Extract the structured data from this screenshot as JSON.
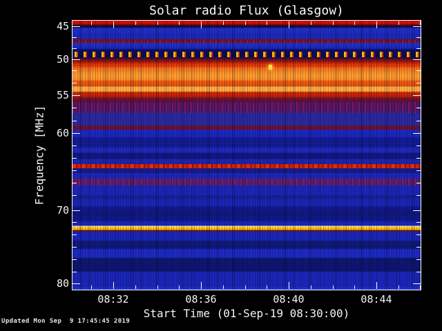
{
  "header": {
    "title": "Solar radio Flux (Glasgow)"
  },
  "footer": {
    "updated": "Updated Mon Sep  9 17:45:45 2019"
  },
  "chart_data": {
    "type": "heatmap",
    "subtype": "radio-spectrogram",
    "title": "Solar radio Flux (Glasgow)",
    "xlabel": "Start Time (01-Sep-19 08:30:00)",
    "ylabel": "Frequency [MHz]",
    "x_tick_labels": [
      "08:32",
      "08:36",
      "08:40",
      "08:44"
    ],
    "x_minor_tick_interval": "1 minute",
    "x_range": [
      "08:30:10",
      "08:46:10"
    ],
    "y_tick_labels": [
      "45",
      "50",
      "55",
      "60",
      "70",
      "80"
    ],
    "y_range_mhz": [
      45,
      80
    ],
    "y_axis_orientation": "inverted (45 MHz at top, 80 MHz at bottom)",
    "grid": "off",
    "legend": "none",
    "colormap": "blue (quiet) -> red -> orange -> yellow/white (intense)",
    "background_level": "quiet blue continuum with vertical noise striations",
    "features": [
      {
        "freq_mhz": 44.8,
        "extent": "full time range",
        "kind": "broadband interference band",
        "intensity": "high",
        "color": "red"
      },
      {
        "freq_mhz": 47.3,
        "extent": "full time range",
        "kind": "weak mottled band",
        "intensity": "low",
        "color": "purple"
      },
      {
        "freq_mhz": 49.0,
        "extent": "full time range",
        "kind": "periodic dotted carrier (regular pulses)",
        "intensity": "high",
        "color": "yellow/orange dashes on dark background"
      },
      {
        "freq_mhz_range": [
          50.2,
          55.3
        ],
        "extent": "full time range",
        "kind": "strong broadband emission/RFI band",
        "intensity": "very high",
        "color": "red to orange-yellow, brightest near 51.5 and 54.3 MHz"
      },
      {
        "freq_mhz": 51.2,
        "time_approx": "08:39",
        "kind": "isolated point burst",
        "intensity": "saturated",
        "color": "bright yellow"
      },
      {
        "freq_mhz": 59.4,
        "extent": "full time range",
        "kind": "narrow band",
        "intensity": "medium",
        "color": "dark red"
      },
      {
        "freq_mhz": 64.3,
        "extent": "full time range",
        "kind": "narrow intermittent band",
        "intensity": "high",
        "color": "red speckles"
      },
      {
        "freq_mhz": 66.3,
        "extent": "full time range",
        "kind": "weak mottled band",
        "intensity": "low",
        "color": "purple"
      },
      {
        "freq_mhz": 72.4,
        "extent": "full time range",
        "kind": "continuous narrow carrier",
        "intensity": "saturated",
        "color": "white-yellow line with dark red lower edge"
      }
    ]
  },
  "colors": {
    "page_background": "#000000",
    "axis_and_text": "#ffffff",
    "quiet_blue": "#1b26b8",
    "band_red": "#d42608",
    "band_orange": "#ff9428",
    "band_light_orange": "#ffb240",
    "carrier_yellow": "#ffc400"
  }
}
